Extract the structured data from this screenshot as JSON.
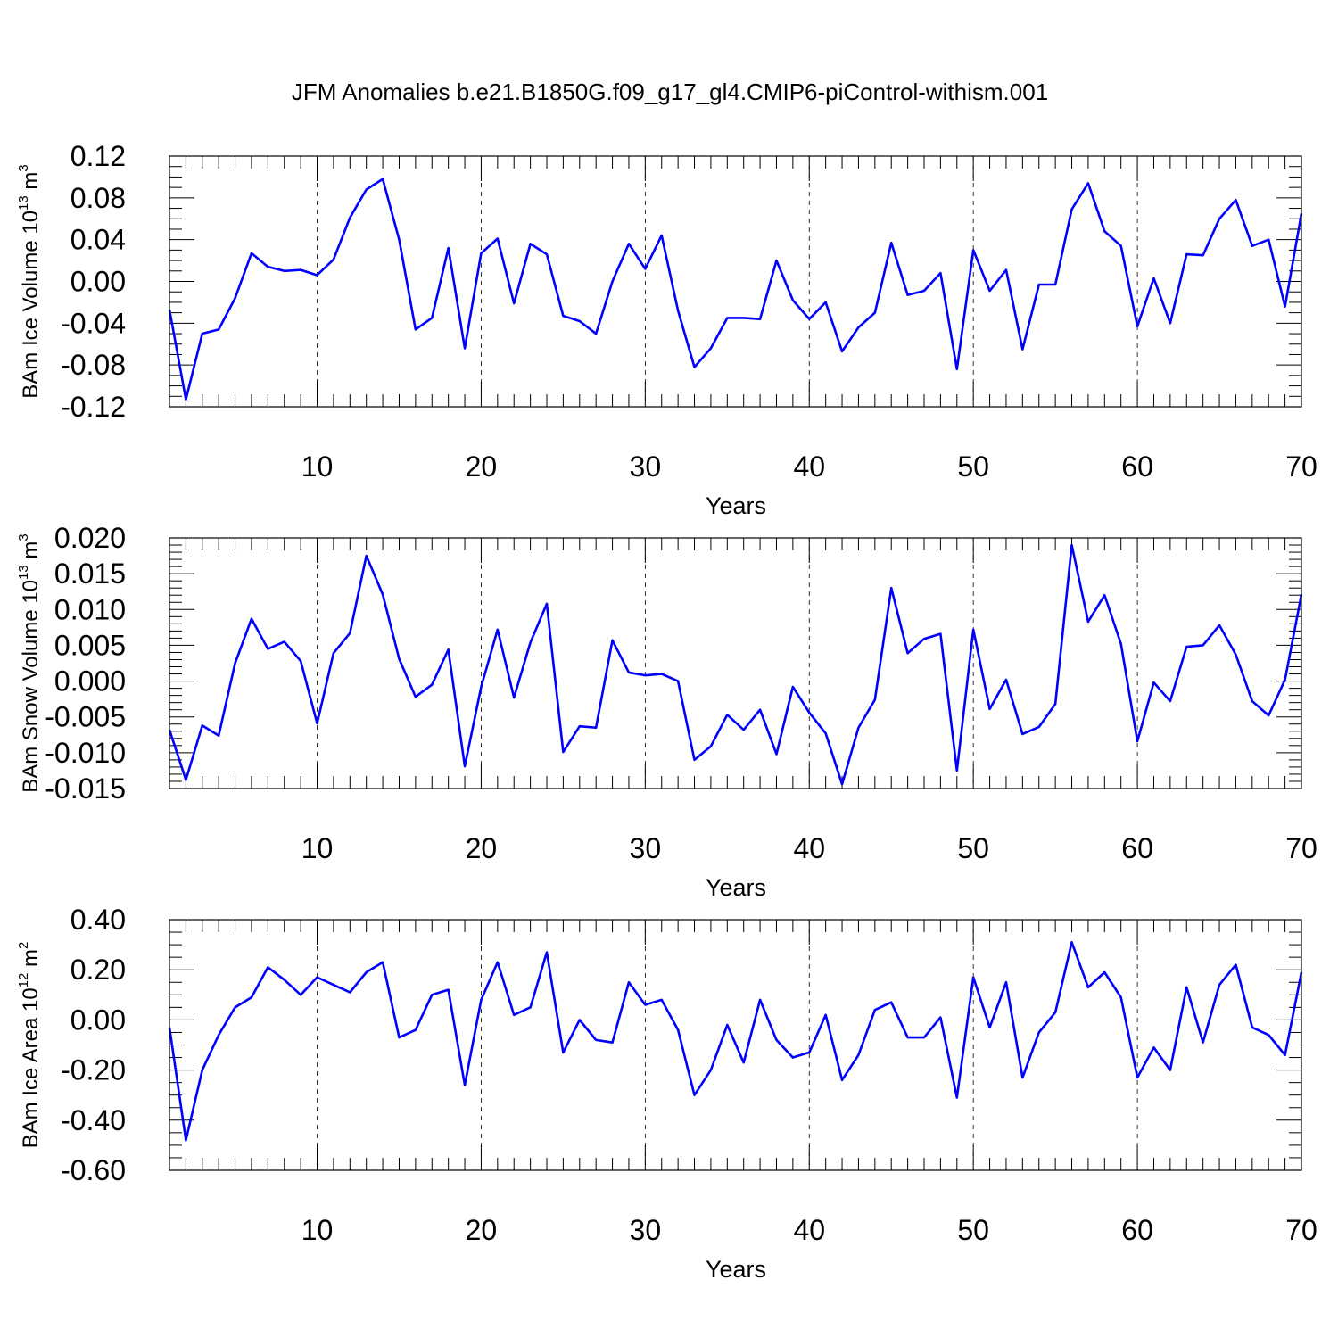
{
  "title": "JFM Anomalies b.e21.B1850G.f09_g17_gl4.CMIP6-piControl-withism.001",
  "chart_data": [
    {
      "type": "line",
      "name": "ice-volume",
      "xlabel": "Years",
      "ylabel_main": "BAm Ice Volume 10",
      "ylabel_sup": "13",
      "ylabel_unit": " m",
      "ylabel_unit_sup": "3",
      "xlim": [
        1,
        70
      ],
      "ylim": [
        -0.12,
        0.12
      ],
      "xticks": [
        10,
        20,
        30,
        40,
        50,
        60,
        70
      ],
      "yticks": [
        -0.12,
        -0.08,
        -0.04,
        0.0,
        0.04,
        0.08,
        0.12
      ],
      "ytick_labels": [
        "-0.12",
        "-0.08",
        "-0.04",
        "0.00",
        "0.04",
        "0.08",
        "0.12"
      ],
      "yminor_step": 0.01,
      "color": "#0000ff",
      "x_start": 1,
      "values": [
        -0.027,
        -0.113,
        -0.05,
        -0.046,
        -0.016,
        0.027,
        0.014,
        0.01,
        0.011,
        0.006,
        0.021,
        0.061,
        0.088,
        0.098,
        0.04,
        -0.046,
        -0.035,
        0.032,
        -0.064,
        0.027,
        0.041,
        -0.021,
        0.036,
        0.026,
        -0.033,
        -0.038,
        -0.05,
        0.0,
        0.036,
        0.012,
        0.044,
        -0.028,
        -0.082,
        -0.064,
        -0.035,
        -0.035,
        -0.036,
        0.02,
        -0.018,
        -0.036,
        -0.02,
        -0.067,
        -0.044,
        -0.03,
        0.037,
        -0.013,
        -0.009,
        0.008,
        -0.084,
        0.03,
        -0.009,
        0.011,
        -0.065,
        -0.003,
        -0.003,
        0.069,
        0.094,
        0.048,
        0.034,
        -0.043,
        0.003,
        -0.04,
        0.026,
        0.025,
        0.06,
        0.078,
        0.034,
        0.04,
        -0.024,
        0.065
      ]
    },
    {
      "type": "line",
      "name": "snow-volume",
      "xlabel": "Years",
      "ylabel_main": "BAm Snow Volume 10",
      "ylabel_sup": "13",
      "ylabel_unit": " m",
      "ylabel_unit_sup": "3",
      "xlim": [
        1,
        70
      ],
      "ylim": [
        -0.015,
        0.02
      ],
      "xticks": [
        10,
        20,
        30,
        40,
        50,
        60,
        70
      ],
      "yticks": [
        -0.015,
        -0.01,
        -0.005,
        0.0,
        0.005,
        0.01,
        0.015,
        0.02
      ],
      "ytick_labels": [
        "-0.015",
        "-0.010",
        "-0.005",
        "0.000",
        "0.005",
        "0.010",
        "0.015",
        "0.020"
      ],
      "yminor_step": 0.001,
      "color": "#0000ff",
      "x_start": 1,
      "values": [
        -0.0068,
        -0.0138,
        -0.0062,
        -0.0076,
        0.0025,
        0.0087,
        0.0045,
        0.0055,
        0.0028,
        -0.0059,
        0.0039,
        0.0067,
        0.0175,
        0.0121,
        0.0031,
        -0.0022,
        -0.0005,
        0.0044,
        -0.0119,
        -0.0008,
        0.0072,
        -0.0023,
        0.0054,
        0.0108,
        -0.0099,
        -0.0063,
        -0.0065,
        0.0057,
        0.0012,
        0.0008,
        0.001,
        0.0,
        -0.011,
        -0.0091,
        -0.0047,
        -0.0068,
        -0.004,
        -0.0102,
        -0.0008,
        -0.0044,
        -0.0073,
        -0.0144,
        -0.0065,
        -0.0026,
        0.013,
        0.0039,
        0.0059,
        0.0066,
        -0.0125,
        0.0072,
        -0.0039,
        0.0002,
        -0.0074,
        -0.0064,
        -0.0032,
        0.019,
        0.0083,
        0.012,
        0.0052,
        -0.0084,
        -0.0002,
        -0.0028,
        0.0048,
        0.005,
        0.0078,
        0.0037,
        -0.0028,
        -0.0048,
        0.0002,
        0.0121
      ]
    },
    {
      "type": "line",
      "name": "ice-area",
      "xlabel": "Years",
      "ylabel_main": "BAm Ice Area 10",
      "ylabel_sup": "12",
      "ylabel_unit": " m",
      "ylabel_unit_sup": "2",
      "xlim": [
        1,
        70
      ],
      "ylim": [
        -0.6,
        0.4
      ],
      "xticks": [
        10,
        20,
        30,
        40,
        50,
        60,
        70
      ],
      "yticks": [
        -0.6,
        -0.4,
        -0.2,
        0.0,
        0.2,
        0.4
      ],
      "ytick_labels": [
        "-0.60",
        "-0.40",
        "-0.20",
        "0.00",
        "0.20",
        "0.40"
      ],
      "yminor_step": 0.05,
      "color": "#0000ff",
      "x_start": 1,
      "values": [
        -0.03,
        -0.48,
        -0.2,
        -0.06,
        0.05,
        0.09,
        0.21,
        0.16,
        0.1,
        0.17,
        0.14,
        0.11,
        0.19,
        0.23,
        -0.07,
        -0.04,
        0.1,
        0.12,
        -0.26,
        0.08,
        0.23,
        0.02,
        0.05,
        0.27,
        -0.13,
        0.0,
        -0.08,
        -0.09,
        0.15,
        0.06,
        0.08,
        -0.04,
        -0.3,
        -0.2,
        -0.02,
        -0.17,
        0.08,
        -0.08,
        -0.15,
        -0.13,
        0.02,
        -0.24,
        -0.14,
        0.04,
        0.07,
        -0.07,
        -0.07,
        0.01,
        -0.31,
        0.17,
        -0.03,
        0.15,
        -0.23,
        -0.05,
        0.03,
        0.31,
        0.13,
        0.19,
        0.09,
        -0.23,
        -0.11,
        -0.2,
        0.13,
        -0.09,
        0.14,
        0.22,
        -0.03,
        -0.06,
        -0.14,
        0.19
      ]
    }
  ]
}
